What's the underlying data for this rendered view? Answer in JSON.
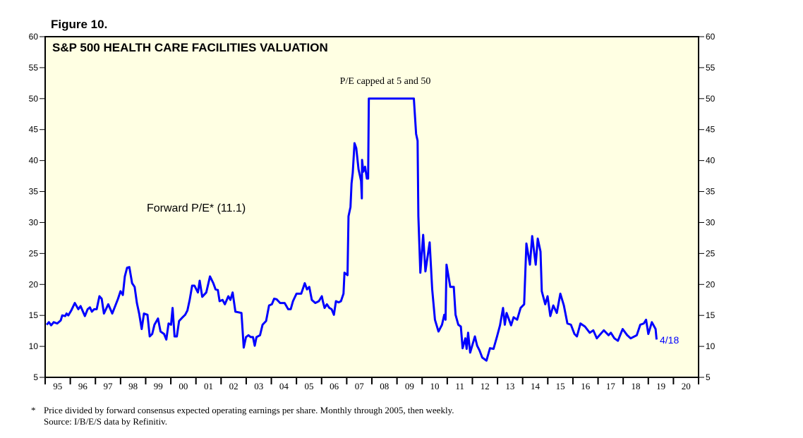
{
  "figure_label": "Figure 10.",
  "chart_data": {
    "type": "line",
    "title": "S&P 500 HEALTH CARE FACILITIES VALUATION",
    "xlabel": "",
    "ylabel": "",
    "ylim": [
      5,
      60
    ],
    "yticks": [
      5,
      10,
      15,
      20,
      25,
      30,
      35,
      40,
      45,
      50,
      55,
      60
    ],
    "xlim": [
      1995,
      2021
    ],
    "xtick_labels": [
      "95",
      "96",
      "97",
      "98",
      "99",
      "00",
      "01",
      "02",
      "03",
      "04",
      "05",
      "06",
      "07",
      "08",
      "09",
      "10",
      "11",
      "12",
      "13",
      "14",
      "15",
      "16",
      "17",
      "18",
      "19",
      "20"
    ],
    "grid": false,
    "background_color": "#FFFFE3",
    "series": [
      {
        "name": "Forward P/E* (11.1)",
        "color": "#0000FF",
        "points": [
          [
            1995.06,
            13.5
          ],
          [
            1995.15,
            13.9
          ],
          [
            1995.24,
            13.4
          ],
          [
            1995.34,
            13.9
          ],
          [
            1995.48,
            13.7
          ],
          [
            1995.62,
            14.2
          ],
          [
            1995.68,
            15.0
          ],
          [
            1995.8,
            14.9
          ],
          [
            1995.85,
            15.3
          ],
          [
            1995.92,
            15.0
          ],
          [
            1996.04,
            15.8
          ],
          [
            1996.18,
            17.0
          ],
          [
            1996.32,
            16.0
          ],
          [
            1996.41,
            16.5
          ],
          [
            1996.58,
            14.9
          ],
          [
            1996.69,
            16.0
          ],
          [
            1996.78,
            16.3
          ],
          [
            1996.86,
            15.6
          ],
          [
            1996.95,
            16.0
          ],
          [
            1997.05,
            16.0
          ],
          [
            1997.16,
            18.1
          ],
          [
            1997.25,
            17.7
          ],
          [
            1997.34,
            15.3
          ],
          [
            1997.51,
            16.8
          ],
          [
            1997.67,
            15.3
          ],
          [
            1997.9,
            17.7
          ],
          [
            1998.0,
            18.9
          ],
          [
            1998.09,
            18.3
          ],
          [
            1998.17,
            21.3
          ],
          [
            1998.26,
            22.7
          ],
          [
            1998.35,
            22.8
          ],
          [
            1998.46,
            20.2
          ],
          [
            1998.56,
            19.6
          ],
          [
            1998.65,
            17.0
          ],
          [
            1998.74,
            15.3
          ],
          [
            1998.84,
            12.8
          ],
          [
            1998.93,
            15.3
          ],
          [
            1999.07,
            15.1
          ],
          [
            1999.16,
            11.6
          ],
          [
            1999.26,
            12.0
          ],
          [
            1999.35,
            13.5
          ],
          [
            1999.49,
            14.5
          ],
          [
            1999.59,
            12.4
          ],
          [
            1999.73,
            12.0
          ],
          [
            1999.82,
            11.1
          ],
          [
            1999.91,
            13.7
          ],
          [
            2000.01,
            13.5
          ],
          [
            2000.07,
            16.2
          ],
          [
            2000.15,
            11.6
          ],
          [
            2000.24,
            11.6
          ],
          [
            2000.33,
            14.1
          ],
          [
            2000.47,
            14.7
          ],
          [
            2000.57,
            15.1
          ],
          [
            2000.66,
            15.8
          ],
          [
            2000.75,
            17.5
          ],
          [
            2000.85,
            19.8
          ],
          [
            2000.94,
            19.8
          ],
          [
            2001.08,
            18.7
          ],
          [
            2001.15,
            20.6
          ],
          [
            2001.25,
            18.0
          ],
          [
            2001.41,
            18.7
          ],
          [
            2001.56,
            21.3
          ],
          [
            2001.69,
            20.2
          ],
          [
            2001.78,
            19.2
          ],
          [
            2001.87,
            19.1
          ],
          [
            2001.94,
            17.3
          ],
          [
            2002.06,
            17.5
          ],
          [
            2002.15,
            16.8
          ],
          [
            2002.29,
            18.1
          ],
          [
            2002.37,
            17.5
          ],
          [
            2002.46,
            18.7
          ],
          [
            2002.57,
            15.6
          ],
          [
            2002.81,
            15.4
          ],
          [
            2002.9,
            9.8
          ],
          [
            2002.99,
            11.5
          ],
          [
            2003.09,
            11.8
          ],
          [
            2003.18,
            11.5
          ],
          [
            2003.27,
            11.5
          ],
          [
            2003.34,
            10.1
          ],
          [
            2003.41,
            11.5
          ],
          [
            2003.55,
            11.8
          ],
          [
            2003.65,
            13.5
          ],
          [
            2003.79,
            14.1
          ],
          [
            2003.91,
            16.6
          ],
          [
            2004.02,
            16.8
          ],
          [
            2004.11,
            17.7
          ],
          [
            2004.21,
            17.6
          ],
          [
            2004.35,
            17.0
          ],
          [
            2004.53,
            17.0
          ],
          [
            2004.67,
            16.0
          ],
          [
            2004.77,
            16.0
          ],
          [
            2004.86,
            17.3
          ],
          [
            2005.0,
            18.5
          ],
          [
            2005.19,
            18.5
          ],
          [
            2005.33,
            20.2
          ],
          [
            2005.42,
            19.2
          ],
          [
            2005.51,
            19.6
          ],
          [
            2005.61,
            17.5
          ],
          [
            2005.75,
            17.0
          ],
          [
            2005.89,
            17.3
          ],
          [
            2006.01,
            18.1
          ],
          [
            2006.05,
            17.3
          ],
          [
            2006.12,
            16.2
          ],
          [
            2006.21,
            16.8
          ],
          [
            2006.31,
            16.2
          ],
          [
            2006.4,
            16.0
          ],
          [
            2006.49,
            15.1
          ],
          [
            2006.57,
            17.3
          ],
          [
            2006.68,
            17.1
          ],
          [
            2006.77,
            17.3
          ],
          [
            2006.87,
            18.5
          ],
          [
            2006.91,
            21.9
          ],
          [
            2007.03,
            21.5
          ],
          [
            2007.07,
            31.0
          ],
          [
            2007.15,
            32.5
          ],
          [
            2007.19,
            36.3
          ],
          [
            2007.24,
            38.0
          ],
          [
            2007.31,
            42.8
          ],
          [
            2007.38,
            42.0
          ],
          [
            2007.47,
            38.6
          ],
          [
            2007.57,
            36.7
          ],
          [
            2007.6,
            33.9
          ],
          [
            2007.61,
            40.1
          ],
          [
            2007.66,
            38.2
          ],
          [
            2007.73,
            39.0
          ],
          [
            2007.8,
            37.1
          ],
          [
            2007.85,
            37.1
          ],
          [
            2007.88,
            50.0
          ],
          [
            2009.67,
            50.0
          ],
          [
            2009.76,
            44.3
          ],
          [
            2009.82,
            43.2
          ],
          [
            2009.85,
            31.0
          ],
          [
            2009.93,
            21.9
          ],
          [
            2010.04,
            28.0
          ],
          [
            2010.13,
            22.1
          ],
          [
            2010.3,
            26.8
          ],
          [
            2010.4,
            19.2
          ],
          [
            2010.51,
            14.3
          ],
          [
            2010.65,
            12.4
          ],
          [
            2010.79,
            13.5
          ],
          [
            2010.88,
            15.1
          ],
          [
            2010.93,
            14.3
          ],
          [
            2010.97,
            23.2
          ],
          [
            2011.12,
            19.6
          ],
          [
            2011.26,
            19.6
          ],
          [
            2011.33,
            15.1
          ],
          [
            2011.44,
            13.5
          ],
          [
            2011.54,
            13.2
          ],
          [
            2011.61,
            9.7
          ],
          [
            2011.72,
            11.3
          ],
          [
            2011.77,
            9.6
          ],
          [
            2011.83,
            12.2
          ],
          [
            2011.91,
            9.0
          ],
          [
            2012.1,
            11.6
          ],
          [
            2012.19,
            10.1
          ],
          [
            2012.28,
            9.4
          ],
          [
            2012.39,
            8.2
          ],
          [
            2012.56,
            7.7
          ],
          [
            2012.7,
            9.7
          ],
          [
            2012.84,
            9.6
          ],
          [
            2012.98,
            11.6
          ],
          [
            2013.1,
            13.4
          ],
          [
            2013.22,
            16.2
          ],
          [
            2013.29,
            13.5
          ],
          [
            2013.36,
            15.4
          ],
          [
            2013.54,
            13.4
          ],
          [
            2013.64,
            14.7
          ],
          [
            2013.78,
            14.3
          ],
          [
            2013.92,
            16.2
          ],
          [
            2014.06,
            16.8
          ],
          [
            2014.15,
            26.6
          ],
          [
            2014.29,
            23.2
          ],
          [
            2014.38,
            27.8
          ],
          [
            2014.52,
            23.2
          ],
          [
            2014.6,
            27.4
          ],
          [
            2014.71,
            25.3
          ],
          [
            2014.76,
            18.9
          ],
          [
            2014.9,
            16.8
          ],
          [
            2014.99,
            18.1
          ],
          [
            2015.1,
            14.9
          ],
          [
            2015.22,
            16.6
          ],
          [
            2015.36,
            15.4
          ],
          [
            2015.5,
            18.5
          ],
          [
            2015.64,
            16.6
          ],
          [
            2015.78,
            13.7
          ],
          [
            2015.92,
            13.5
          ],
          [
            2016.06,
            12.0
          ],
          [
            2016.16,
            11.6
          ],
          [
            2016.3,
            13.7
          ],
          [
            2016.48,
            13.2
          ],
          [
            2016.67,
            12.2
          ],
          [
            2016.81,
            12.6
          ],
          [
            2016.95,
            11.3
          ],
          [
            2017.23,
            12.6
          ],
          [
            2017.42,
            11.8
          ],
          [
            2017.51,
            12.2
          ],
          [
            2017.65,
            11.3
          ],
          [
            2017.79,
            10.9
          ],
          [
            2017.98,
            12.8
          ],
          [
            2018.16,
            11.8
          ],
          [
            2018.3,
            11.3
          ],
          [
            2018.54,
            11.8
          ],
          [
            2018.68,
            13.5
          ],
          [
            2018.82,
            13.7
          ],
          [
            2018.91,
            14.3
          ],
          [
            2019.0,
            12.0
          ],
          [
            2019.14,
            13.9
          ],
          [
            2019.29,
            12.8
          ],
          [
            2019.33,
            11.1
          ]
        ]
      }
    ],
    "annotations": {
      "series_label": "Forward P/E* (11.1)",
      "cap_note": "P/E capped at 5 and 50",
      "last_date": "4/18"
    }
  },
  "footnotes": {
    "marker": "*",
    "line1": "Price divided by forward consensus expected operating earnings per share. Monthly through 2005, then weekly.",
    "line2": "Source: I/B/E/S data by Refinitiv."
  }
}
